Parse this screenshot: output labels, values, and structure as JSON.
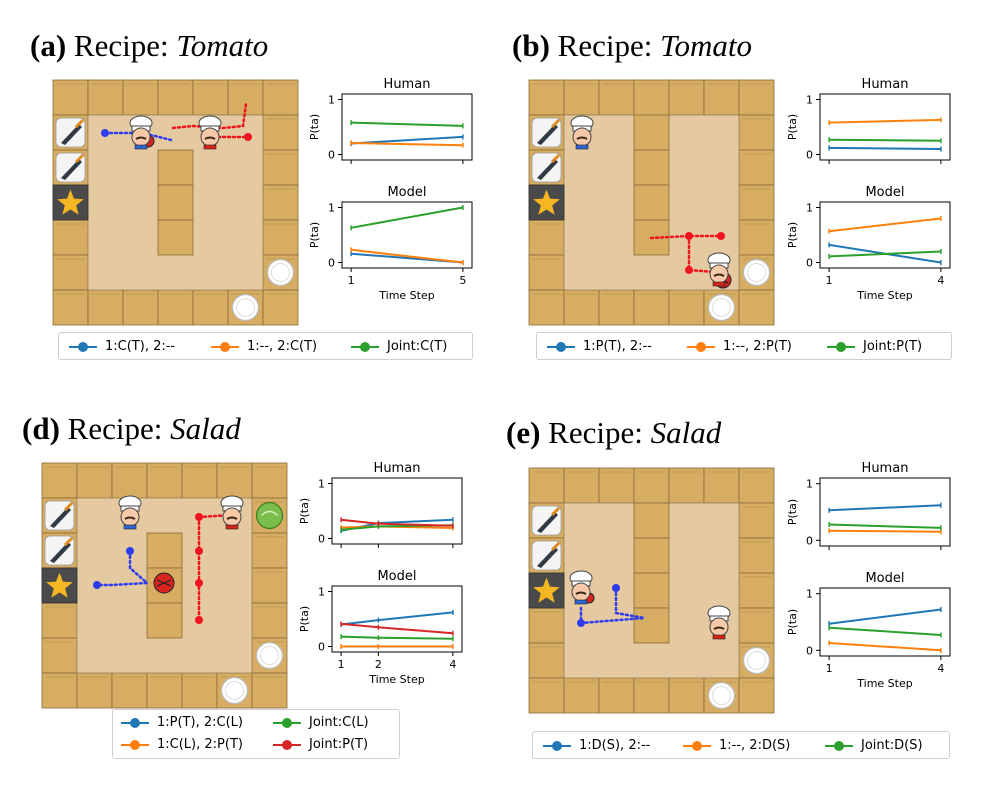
{
  "panels": [
    {
      "id": "a",
      "label": "(a)",
      "recipe_prefix": "Recipe: ",
      "recipe": "Tomato",
      "legend": [
        "1:C(T), 2:--",
        "1:--, 2:C(T)",
        "Joint:C(T)"
      ],
      "human_title": "Human",
      "model_title": "Model",
      "xlabel": "Time Step",
      "ylabel": "P(ta)"
    },
    {
      "id": "b",
      "label": "(b)",
      "recipe_prefix": "Recipe: ",
      "recipe": "Tomato",
      "legend": [
        "1:P(T), 2:--",
        "1:--, 2:P(T)",
        "Joint:P(T)"
      ],
      "human_title": "Human",
      "model_title": "Model",
      "xlabel": "Time Step",
      "ylabel": "P(ta)"
    },
    {
      "id": "d",
      "label": "(d)",
      "recipe_prefix": "Recipe: ",
      "recipe": "Salad",
      "legend": [
        "1:P(T), 2:C(L)",
        "Joint:C(L)",
        "1:C(L), 2:P(T)",
        "Joint:P(T)"
      ],
      "human_title": "Human",
      "model_title": "Model",
      "xlabel": "Time Step",
      "ylabel": "P(ta)"
    },
    {
      "id": "e",
      "label": "(e)",
      "recipe_prefix": "Recipe: ",
      "recipe": "Salad",
      "legend": [
        "1:D(S), 2:--",
        "1:--, 2:D(S)",
        "Joint:D(S)"
      ],
      "human_title": "Human",
      "model_title": "Model",
      "xlabel": "Time Step",
      "ylabel": "P(ta)"
    }
  ],
  "colors": {
    "blue": "#1f77b4",
    "orange": "#ff7f0e",
    "green": "#2ca02c",
    "red": "#d62728",
    "counter": "#d6ad62",
    "floor": "#e4c9a1",
    "path_blue": "#2e3cf0",
    "path_red": "#f0141e"
  },
  "chart_data": [
    {
      "panel": "a",
      "type": "line",
      "subplots": [
        {
          "title": "Human",
          "x": [
            1,
            5
          ],
          "xticks": [
            1,
            5
          ],
          "yticks": [
            0,
            1
          ],
          "ylim": [
            -0.1,
            1.1
          ],
          "series": [
            {
              "name": "1:C(T), 2:--",
              "color": "#1f77b4",
              "values": [
                0.2,
                0.32
              ]
            },
            {
              "name": "1:--, 2:C(T)",
              "color": "#ff7f0e",
              "values": [
                0.21,
                0.17
              ]
            },
            {
              "name": "Joint:C(T)",
              "color": "#2ca02c",
              "values": [
                0.58,
                0.52
              ]
            }
          ]
        },
        {
          "title": "Model",
          "x": [
            1,
            5
          ],
          "xticks": [
            1,
            5
          ],
          "yticks": [
            0,
            1
          ],
          "ylim": [
            -0.1,
            1.1
          ],
          "series": [
            {
              "name": "1:C(T), 2:--",
              "color": "#1f77b4",
              "values": [
                0.16,
                0.0
              ]
            },
            {
              "name": "1:--, 2:C(T)",
              "color": "#ff7f0e",
              "values": [
                0.23,
                0.0
              ]
            },
            {
              "name": "Joint:C(T)",
              "color": "#2ca02c",
              "values": [
                0.63,
                1.0
              ]
            }
          ]
        }
      ]
    },
    {
      "panel": "b",
      "type": "line",
      "subplots": [
        {
          "title": "Human",
          "x": [
            1,
            4
          ],
          "xticks": [
            1,
            4
          ],
          "yticks": [
            0,
            1
          ],
          "ylim": [
            -0.1,
            1.1
          ],
          "series": [
            {
              "name": "1:P(T), 2:--",
              "color": "#1f77b4",
              "values": [
                0.12,
                0.1
              ]
            },
            {
              "name": "1:--, 2:P(T)",
              "color": "#ff7f0e",
              "values": [
                0.58,
                0.63
              ]
            },
            {
              "name": "Joint:P(T)",
              "color": "#2ca02c",
              "values": [
                0.27,
                0.25
              ]
            }
          ]
        },
        {
          "title": "Model",
          "x": [
            1,
            4
          ],
          "xticks": [
            1,
            4
          ],
          "yticks": [
            0,
            1
          ],
          "ylim": [
            -0.1,
            1.1
          ],
          "series": [
            {
              "name": "1:P(T), 2:--",
              "color": "#1f77b4",
              "values": [
                0.32,
                0.0
              ]
            },
            {
              "name": "1:--, 2:P(T)",
              "color": "#ff7f0e",
              "values": [
                0.57,
                0.8
              ]
            },
            {
              "name": "Joint:P(T)",
              "color": "#2ca02c",
              "values": [
                0.11,
                0.2
              ]
            }
          ]
        }
      ]
    },
    {
      "panel": "d",
      "type": "line",
      "subplots": [
        {
          "title": "Human",
          "x": [
            1,
            2,
            4
          ],
          "xticks": [
            1,
            2,
            4
          ],
          "yticks": [
            0,
            1
          ],
          "ylim": [
            -0.1,
            1.1
          ],
          "series": [
            {
              "name": "1:P(T), 2:C(L)",
              "color": "#1f77b4",
              "values": [
                0.14,
                0.28,
                0.34
              ]
            },
            {
              "name": "1:C(L), 2:P(T)",
              "color": "#ff7f0e",
              "values": [
                0.2,
                0.22,
                0.19
              ]
            },
            {
              "name": "Joint:C(L)",
              "color": "#2ca02c",
              "values": [
                0.16,
                0.22,
                0.24
              ]
            },
            {
              "name": "Joint:P(T)",
              "color": "#d62728",
              "values": [
                0.34,
                0.27,
                0.23
              ]
            }
          ]
        },
        {
          "title": "Model",
          "x": [
            1,
            2,
            4
          ],
          "xticks": [
            1,
            2,
            4
          ],
          "yticks": [
            0,
            1
          ],
          "ylim": [
            -0.1,
            1.1
          ],
          "series": [
            {
              "name": "1:P(T), 2:C(L)",
              "color": "#1f77b4",
              "values": [
                0.4,
                0.48,
                0.62
              ]
            },
            {
              "name": "1:C(L), 2:P(T)",
              "color": "#ff7f0e",
              "values": [
                0.0,
                0.0,
                0.0
              ]
            },
            {
              "name": "Joint:C(L)",
              "color": "#2ca02c",
              "values": [
                0.18,
                0.16,
                0.14
              ]
            },
            {
              "name": "Joint:P(T)",
              "color": "#d62728",
              "values": [
                0.41,
                0.35,
                0.24
              ]
            }
          ]
        }
      ]
    },
    {
      "panel": "e",
      "type": "line",
      "subplots": [
        {
          "title": "Human",
          "x": [
            1,
            4
          ],
          "xticks": [
            1,
            4
          ],
          "yticks": [
            0,
            1
          ],
          "ylim": [
            -0.1,
            1.1
          ],
          "series": [
            {
              "name": "1:D(S), 2:--",
              "color": "#1f77b4",
              "values": [
                0.53,
                0.62
              ]
            },
            {
              "name": "1:--, 2:D(S)",
              "color": "#ff7f0e",
              "values": [
                0.17,
                0.15
              ]
            },
            {
              "name": "Joint:D(S)",
              "color": "#2ca02c",
              "values": [
                0.28,
                0.22
              ]
            }
          ]
        },
        {
          "title": "Model",
          "x": [
            1,
            4
          ],
          "xticks": [
            1,
            4
          ],
          "yticks": [
            0,
            1
          ],
          "ylim": [
            -0.1,
            1.1
          ],
          "series": [
            {
              "name": "1:D(S), 2:--",
              "color": "#1f77b4",
              "values": [
                0.47,
                0.72
              ]
            },
            {
              "name": "1:--, 2:D(S)",
              "color": "#ff7f0e",
              "values": [
                0.13,
                0.0
              ]
            },
            {
              "name": "Joint:D(S)",
              "color": "#2ca02c",
              "values": [
                0.4,
                0.27
              ]
            }
          ]
        }
      ]
    }
  ]
}
